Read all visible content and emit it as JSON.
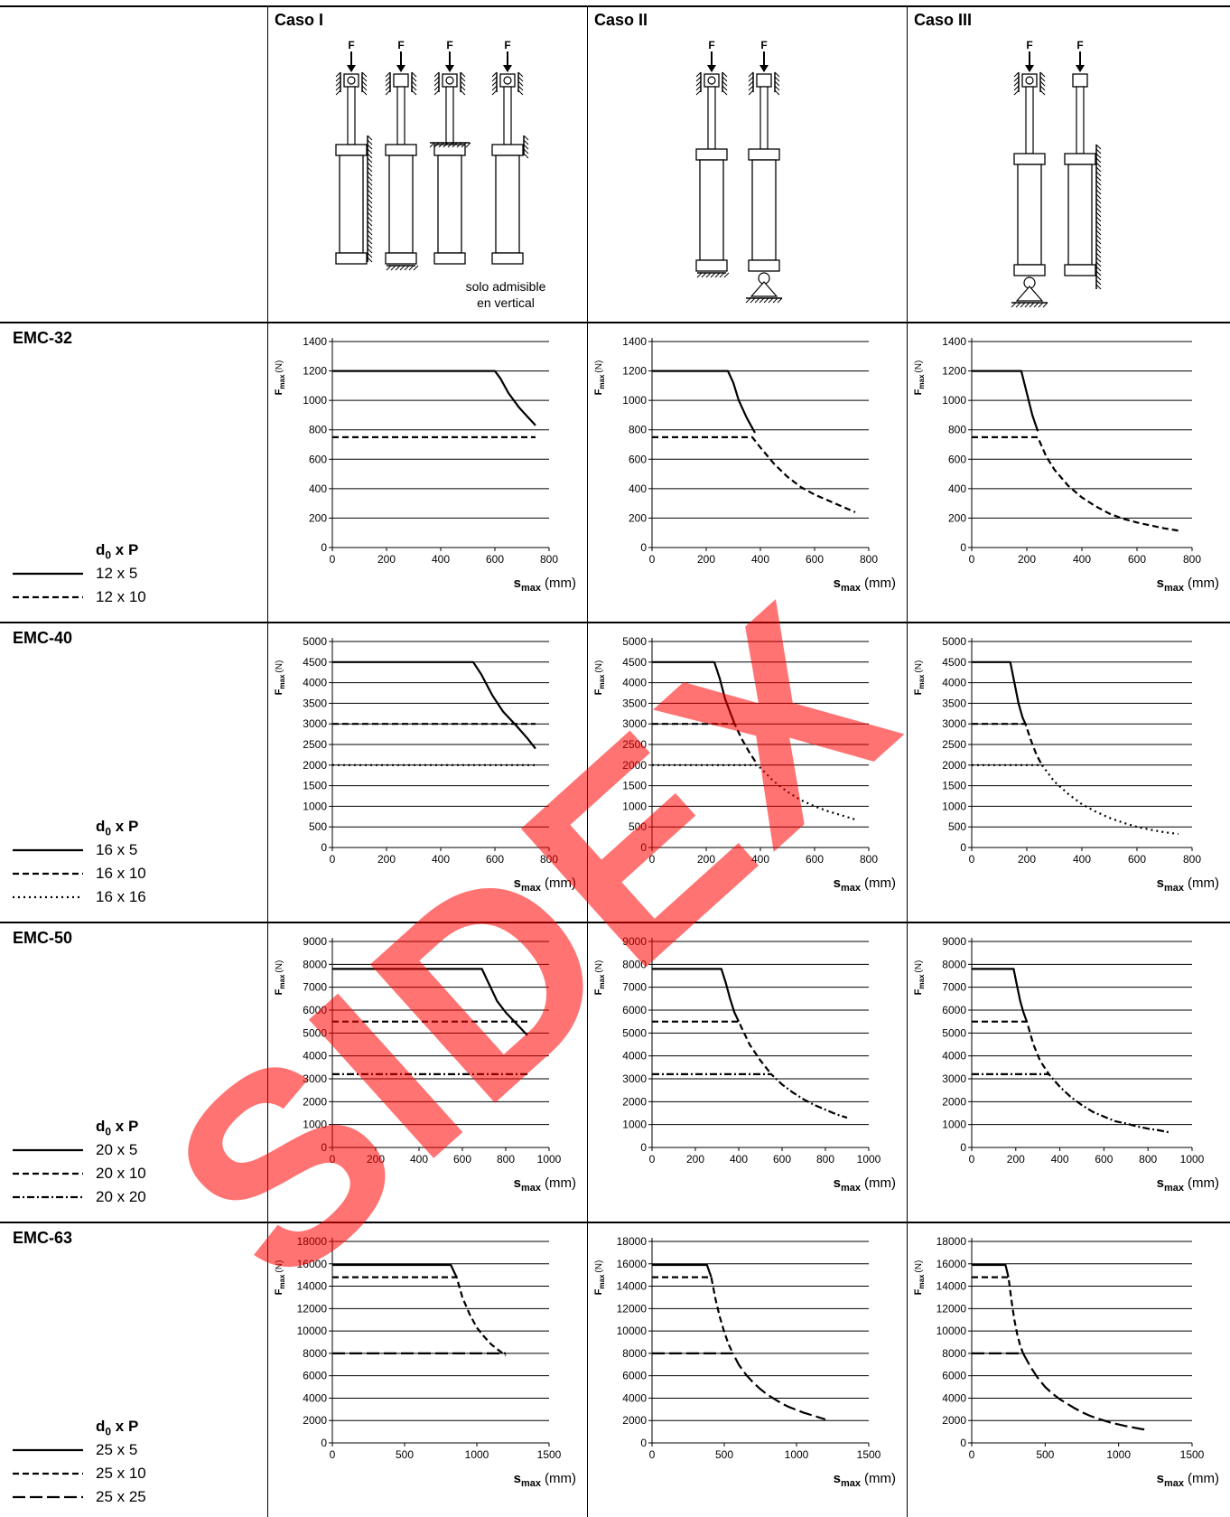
{
  "header": {
    "cases": [
      "Caso I",
      "Caso II",
      "Caso III"
    ],
    "force_label": "F",
    "note_line1": "solo admisible",
    "note_line2": "en vertical"
  },
  "axis_labels": {
    "y_main": "F",
    "y_sub": "max",
    "y_unit": "(N)",
    "x_main": "s",
    "x_sub": "max",
    "x_unit": "(mm)"
  },
  "watermark": {
    "text": "SIDEX",
    "color": "#ff0000"
  },
  "rows": [
    {
      "model": "EMC-32",
      "legend_title_main": "d",
      "legend_title_sub": "0",
      "legend_title_rest": " x P",
      "legend": [
        {
          "label": "12 x 5",
          "style": "solid"
        },
        {
          "label": "12 x 10",
          "style": "dashed"
        }
      ]
    },
    {
      "model": "EMC-40",
      "legend_title_main": "d",
      "legend_title_sub": "0",
      "legend_title_rest": " x P",
      "legend": [
        {
          "label": "16 x 5",
          "style": "solid"
        },
        {
          "label": "16 x 10",
          "style": "dashed"
        },
        {
          "label": "16 x 16",
          "style": "dotted"
        }
      ]
    },
    {
      "model": "EMC-50",
      "legend_title_main": "d",
      "legend_title_sub": "0",
      "legend_title_rest": " x P",
      "legend": [
        {
          "label": "20 x 5",
          "style": "solid"
        },
        {
          "label": "20 x 10",
          "style": "dashed"
        },
        {
          "label": "20 x 20",
          "style": "dashdot"
        }
      ]
    },
    {
      "model": "EMC-63",
      "legend_title_main": "d",
      "legend_title_sub": "0",
      "legend_title_rest": " x P",
      "legend": [
        {
          "label": "25 x 5",
          "style": "solid"
        },
        {
          "label": "25 x 10",
          "style": "dashed"
        },
        {
          "label": "25 x 25",
          "style": "longdash"
        }
      ]
    }
  ],
  "chart_data": [
    {
      "model": "EMC-32",
      "case": "Caso I",
      "type": "line",
      "xlim": [
        0,
        800
      ],
      "ylim": [
        0,
        1400
      ],
      "xticks": [
        0,
        200,
        400,
        600,
        800
      ],
      "yticks": [
        0,
        200,
        400,
        600,
        800,
        1000,
        1200,
        1400
      ],
      "series": [
        {
          "name": "12 x 5",
          "style": "solid",
          "x": [
            0,
            600,
            620,
            650,
            690,
            720,
            750
          ],
          "y": [
            1200,
            1200,
            1150,
            1050,
            950,
            890,
            830
          ]
        },
        {
          "name": "12 x 10",
          "style": "dashed",
          "x": [
            0,
            750
          ],
          "y": [
            750,
            750
          ]
        }
      ]
    },
    {
      "model": "EMC-32",
      "case": "Caso II",
      "type": "line",
      "xlim": [
        0,
        800
      ],
      "ylim": [
        0,
        1400
      ],
      "xticks": [
        0,
        200,
        400,
        600,
        800
      ],
      "yticks": [
        0,
        200,
        400,
        600,
        800,
        1000,
        1200,
        1400
      ],
      "series": [
        {
          "name": "12 x 5",
          "style": "solid",
          "x": [
            0,
            280,
            300,
            320,
            350,
            380
          ],
          "y": [
            1200,
            1200,
            1120,
            1000,
            880,
            780
          ]
        },
        {
          "name": "12 x 10",
          "style": "dashed",
          "x": [
            0,
            370,
            400,
            450,
            500,
            550,
            600,
            650,
            700,
            750
          ],
          "y": [
            750,
            750,
            680,
            570,
            480,
            410,
            360,
            320,
            280,
            240
          ]
        }
      ]
    },
    {
      "model": "EMC-32",
      "case": "Caso III",
      "type": "line",
      "xlim": [
        0,
        800
      ],
      "ylim": [
        0,
        1400
      ],
      "xticks": [
        0,
        200,
        400,
        600,
        800
      ],
      "yticks": [
        0,
        200,
        400,
        600,
        800,
        1000,
        1200,
        1400
      ],
      "series": [
        {
          "name": "12 x 5",
          "style": "solid",
          "x": [
            0,
            180,
            200,
            220,
            240
          ],
          "y": [
            1200,
            1200,
            1050,
            900,
            790
          ]
        },
        {
          "name": "12 x 10",
          "style": "dashed",
          "x": [
            0,
            240,
            270,
            300,
            350,
            400,
            450,
            500,
            550,
            600,
            650,
            700,
            750
          ],
          "y": [
            750,
            750,
            620,
            530,
            420,
            340,
            280,
            230,
            195,
            170,
            150,
            130,
            115
          ]
        }
      ]
    },
    {
      "model": "EMC-40",
      "case": "Caso I",
      "type": "line",
      "xlim": [
        0,
        800
      ],
      "ylim": [
        0,
        5000
      ],
      "xticks": [
        0,
        200,
        400,
        600,
        800
      ],
      "yticks": [
        0,
        500,
        1000,
        1500,
        2000,
        2500,
        3000,
        3500,
        4000,
        4500,
        5000
      ],
      "series": [
        {
          "name": "16 x 5",
          "style": "solid",
          "x": [
            0,
            520,
            550,
            590,
            630,
            680,
            720,
            750
          ],
          "y": [
            4500,
            4500,
            4200,
            3700,
            3300,
            2950,
            2650,
            2400
          ]
        },
        {
          "name": "16 x 10",
          "style": "dashed",
          "x": [
            0,
            750
          ],
          "y": [
            3000,
            3000
          ]
        },
        {
          "name": "16 x 16",
          "style": "dotted",
          "x": [
            0,
            750
          ],
          "y": [
            2000,
            2000
          ]
        }
      ]
    },
    {
      "model": "EMC-40",
      "case": "Caso II",
      "type": "line",
      "xlim": [
        0,
        800
      ],
      "ylim": [
        0,
        5000
      ],
      "xticks": [
        0,
        200,
        400,
        600,
        800
      ],
      "yticks": [
        0,
        500,
        1000,
        1500,
        2000,
        2500,
        3000,
        3500,
        4000,
        4500,
        5000
      ],
      "series": [
        {
          "name": "16 x 5",
          "style": "solid",
          "x": [
            0,
            230,
            250,
            270,
            290,
            305
          ],
          "y": [
            4500,
            4500,
            4100,
            3600,
            3250,
            3000
          ]
        },
        {
          "name": "16 x 10",
          "style": "dashed",
          "x": [
            0,
            305,
            330,
            360,
            390
          ],
          "y": [
            3000,
            3000,
            2650,
            2300,
            2000
          ]
        },
        {
          "name": "16 x 16",
          "style": "dotted",
          "x": [
            0,
            390,
            450,
            500,
            550,
            600,
            650,
            700,
            750
          ],
          "y": [
            2000,
            2000,
            1600,
            1350,
            1150,
            1000,
            880,
            780,
            680
          ]
        }
      ]
    },
    {
      "model": "EMC-40",
      "case": "Caso III",
      "type": "line",
      "xlim": [
        0,
        800
      ],
      "ylim": [
        0,
        5000
      ],
      "xticks": [
        0,
        200,
        400,
        600,
        800
      ],
      "yticks": [
        0,
        500,
        1000,
        1500,
        2000,
        2500,
        3000,
        3500,
        4000,
        4500,
        5000
      ],
      "series": [
        {
          "name": "16 x 5",
          "style": "solid",
          "x": [
            0,
            140,
            155,
            170,
            185,
            195
          ],
          "y": [
            4500,
            4500,
            4000,
            3500,
            3150,
            3000
          ]
        },
        {
          "name": "16 x 10",
          "style": "dashed",
          "x": [
            0,
            195,
            215,
            235,
            255
          ],
          "y": [
            3000,
            3000,
            2600,
            2250,
            2000
          ]
        },
        {
          "name": "16 x 16",
          "style": "dotted",
          "x": [
            0,
            255,
            300,
            350,
            400,
            450,
            500,
            550,
            600,
            650,
            700,
            750
          ],
          "y": [
            2000,
            2000,
            1600,
            1300,
            1050,
            870,
            720,
            600,
            500,
            430,
            370,
            330
          ]
        }
      ]
    },
    {
      "model": "EMC-50",
      "case": "Caso I",
      "type": "line",
      "xlim": [
        0,
        1000
      ],
      "ylim": [
        0,
        9000
      ],
      "xticks": [
        0,
        200,
        400,
        600,
        800,
        1000
      ],
      "yticks": [
        0,
        1000,
        2000,
        3000,
        4000,
        5000,
        6000,
        7000,
        8000,
        9000
      ],
      "series": [
        {
          "name": "20 x 5",
          "style": "solid",
          "x": [
            0,
            690,
            720,
            760,
            800,
            850,
            900
          ],
          "y": [
            7800,
            7800,
            7200,
            6400,
            5900,
            5400,
            4900
          ]
        },
        {
          "name": "20 x 10",
          "style": "dashed",
          "x": [
            0,
            900
          ],
          "y": [
            5500,
            5500
          ]
        },
        {
          "name": "20 x 20",
          "style": "dashdot",
          "x": [
            0,
            900
          ],
          "y": [
            3200,
            3200
          ]
        }
      ]
    },
    {
      "model": "EMC-50",
      "case": "Caso II",
      "type": "line",
      "xlim": [
        0,
        1000
      ],
      "ylim": [
        0,
        9000
      ],
      "xticks": [
        0,
        200,
        400,
        600,
        800,
        1000
      ],
      "yticks": [
        0,
        1000,
        2000,
        3000,
        4000,
        5000,
        6000,
        7000,
        8000,
        9000
      ],
      "series": [
        {
          "name": "20 x 5",
          "style": "solid",
          "x": [
            0,
            320,
            340,
            360,
            380,
            400
          ],
          "y": [
            7800,
            7800,
            7200,
            6500,
            5900,
            5500
          ]
        },
        {
          "name": "20 x 10",
          "style": "dashed",
          "x": [
            0,
            400,
            450,
            500,
            550
          ],
          "y": [
            5500,
            5500,
            4500,
            3800,
            3200
          ]
        },
        {
          "name": "20 x 20",
          "style": "dashdot",
          "x": [
            0,
            550,
            600,
            650,
            700,
            750,
            800,
            850,
            900
          ],
          "y": [
            3200,
            3200,
            2750,
            2400,
            2100,
            1850,
            1650,
            1450,
            1300
          ]
        }
      ]
    },
    {
      "model": "EMC-50",
      "case": "Caso III",
      "type": "line",
      "xlim": [
        0,
        1000
      ],
      "ylim": [
        0,
        9000
      ],
      "xticks": [
        0,
        200,
        400,
        600,
        800,
        1000
      ],
      "yticks": [
        0,
        1000,
        2000,
        3000,
        4000,
        5000,
        6000,
        7000,
        8000,
        9000
      ],
      "series": [
        {
          "name": "20 x 5",
          "style": "solid",
          "x": [
            0,
            190,
            205,
            220,
            235,
            250
          ],
          "y": [
            7800,
            7800,
            7100,
            6400,
            5900,
            5500
          ]
        },
        {
          "name": "20 x 10",
          "style": "dashed",
          "x": [
            0,
            250,
            280,
            310,
            350
          ],
          "y": [
            5500,
            5500,
            4500,
            3800,
            3200
          ]
        },
        {
          "name": "20 x 20",
          "style": "dashdot",
          "x": [
            0,
            350,
            400,
            450,
            500,
            550,
            600,
            650,
            700,
            750,
            800,
            850,
            900
          ],
          "y": [
            3200,
            3200,
            2650,
            2200,
            1850,
            1550,
            1350,
            1150,
            1050,
            920,
            820,
            750,
            650
          ]
        }
      ]
    },
    {
      "model": "EMC-63",
      "case": "Caso I",
      "type": "line",
      "xlim": [
        0,
        1500
      ],
      "ylim": [
        0,
        18000
      ],
      "xticks": [
        0,
        500,
        1000,
        1500
      ],
      "yticks": [
        0,
        2000,
        4000,
        6000,
        8000,
        10000,
        12000,
        14000,
        16000,
        18000
      ],
      "series": [
        {
          "name": "25 x 5",
          "style": "solid",
          "x": [
            0,
            820,
            860
          ],
          "y": [
            15900,
            15900,
            14800
          ]
        },
        {
          "name": "25 x 10",
          "style": "dashed",
          "x": [
            0,
            860,
            900,
            950,
            1000,
            1050,
            1100,
            1150,
            1200
          ],
          "y": [
            14800,
            14800,
            13000,
            11500,
            10300,
            9500,
            8800,
            8300,
            7800
          ]
        },
        {
          "name": "25 x 25",
          "style": "longdash",
          "x": [
            0,
            1200
          ],
          "y": [
            8000,
            8000
          ]
        }
      ]
    },
    {
      "model": "EMC-63",
      "case": "Caso II",
      "type": "line",
      "xlim": [
        0,
        1500
      ],
      "ylim": [
        0,
        18000
      ],
      "xticks": [
        0,
        500,
        1000,
        1500
      ],
      "yticks": [
        0,
        2000,
        4000,
        6000,
        8000,
        10000,
        12000,
        14000,
        16000,
        18000
      ],
      "series": [
        {
          "name": "25 x 5",
          "style": "solid",
          "x": [
            0,
            380,
            410
          ],
          "y": [
            15900,
            15900,
            14800
          ]
        },
        {
          "name": "25 x 10",
          "style": "dashed",
          "x": [
            0,
            410,
            440,
            470,
            500,
            530,
            560
          ],
          "y": [
            14800,
            14800,
            12800,
            11200,
            9900,
            8800,
            8000
          ]
        },
        {
          "name": "25 x 25",
          "style": "longdash",
          "x": [
            0,
            560,
            600,
            650,
            700,
            750,
            800,
            850,
            900,
            950,
            1000,
            1050,
            1100,
            1150,
            1200
          ],
          "y": [
            8000,
            8000,
            7000,
            6100,
            5400,
            4800,
            4300,
            3900,
            3500,
            3200,
            2950,
            2700,
            2500,
            2300,
            2100
          ]
        }
      ]
    },
    {
      "model": "EMC-63",
      "case": "Caso III",
      "type": "line",
      "xlim": [
        0,
        1500
      ],
      "ylim": [
        0,
        18000
      ],
      "xticks": [
        0,
        500,
        1000,
        1500
      ],
      "yticks": [
        0,
        2000,
        4000,
        6000,
        8000,
        10000,
        12000,
        14000,
        16000,
        18000
      ],
      "series": [
        {
          "name": "25 x 5",
          "style": "solid",
          "x": [
            0,
            230,
            250
          ],
          "y": [
            15900,
            15900,
            14800
          ]
        },
        {
          "name": "25 x 10",
          "style": "dashed",
          "x": [
            0,
            250,
            270,
            290,
            310,
            330,
            350
          ],
          "y": [
            14800,
            14800,
            12800,
            11000,
            9700,
            8700,
            8000
          ]
        },
        {
          "name": "25 x 25",
          "style": "longdash",
          "x": [
            0,
            350,
            400,
            450,
            500,
            550,
            600,
            650,
            700,
            750,
            800,
            850,
            900,
            950,
            1000,
            1050,
            1100,
            1150,
            1200
          ],
          "y": [
            8000,
            8000,
            6800,
            5800,
            5000,
            4400,
            3900,
            3500,
            3100,
            2750,
            2450,
            2200,
            2000,
            1800,
            1650,
            1500,
            1380,
            1250,
            1150
          ]
        }
      ]
    }
  ]
}
